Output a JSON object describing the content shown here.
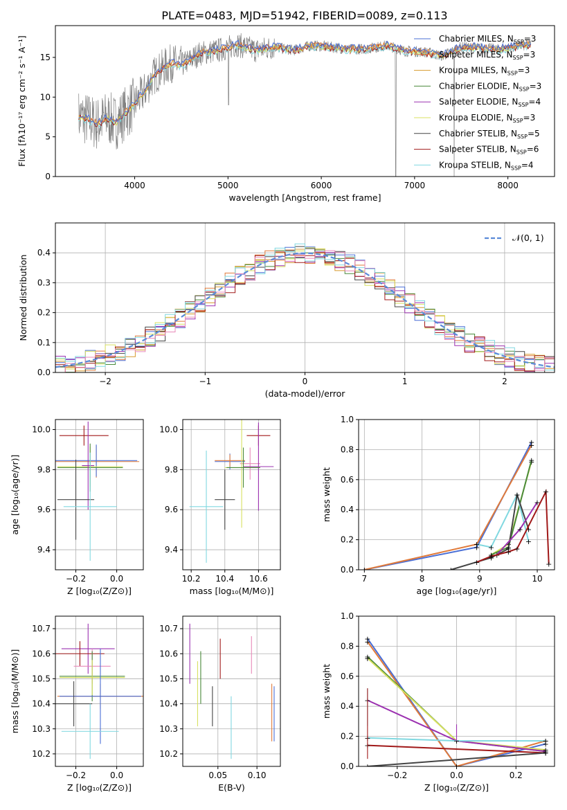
{
  "title": "PLATE=0483, MJD=51942, FIBERID=0089, z=0.113",
  "colors": {
    "chabrier_miles": "#4a6fd6",
    "salpeter_miles": "#e07a3a",
    "kroupa_miles": "#d79a2b",
    "chabrier_elodie": "#4a8a3a",
    "salpeter_elodie": "#9b30b0",
    "kroupa_elodie": "#d8e060",
    "chabrier_stelib": "#444444",
    "salpeter_stelib": "#a01818",
    "kroupa_stelib": "#80d8e0",
    "spectrum": "#808080",
    "pink": "#e888b8",
    "normal_curve": "#5a8ad8"
  },
  "chart_data": [
    {
      "type": "line",
      "xlabel": "wavelength [Angstrom, rest frame]",
      "ylabel": "Flux [fλ10⁻¹⁷ erg cm⁻² s⁻¹ A⁻¹]",
      "xlim": [
        3150,
        8500
      ],
      "ylim": [
        0,
        19
      ],
      "xticks": [
        "4000",
        "5000",
        "6000",
        "7000",
        "8000"
      ],
      "yticks": [
        "0",
        "5",
        "10",
        "15"
      ],
      "legend_position": "right",
      "legend": [
        {
          "label": "Chabrier MILES, N",
          "sub": "SSP",
          "val": "=3",
          "color": "chabrier_miles"
        },
        {
          "label": "Salpeter MILES, N",
          "sub": "SSP",
          "val": "=3",
          "color": "salpeter_miles"
        },
        {
          "label": "Kroupa MILES, N",
          "sub": "SSP",
          "val": "=3",
          "color": "kroupa_miles"
        },
        {
          "label": "Chabrier ELODIE, N",
          "sub": "SSP",
          "val": "=3",
          "color": "chabrier_elodie"
        },
        {
          "label": "Salpeter ELODIE, N",
          "sub": "SSP",
          "val": "=4",
          "color": "salpeter_elodie"
        },
        {
          "label": "Kroupa ELODIE, N",
          "sub": "SSP",
          "val": "=3",
          "color": "kroupa_elodie"
        },
        {
          "label": "Chabrier STELIB, N",
          "sub": "SSP",
          "val": "=5",
          "color": "chabrier_stelib"
        },
        {
          "label": "Salpeter STELIB, N",
          "sub": "SSP",
          "val": "=6",
          "color": "salpeter_stelib"
        },
        {
          "label": "Kroupa STELIB, N",
          "sub": "SSP",
          "val": "=4",
          "color": "kroupa_stelib"
        }
      ],
      "model_curve": {
        "x": [
          3400,
          3500,
          3600,
          3700,
          3800,
          3900,
          4000,
          4100,
          4200,
          4300,
          4400,
          4500,
          4700,
          4900,
          5100,
          5300,
          5500,
          5700,
          5900,
          6100,
          6300,
          6500,
          6700,
          6900,
          7100,
          7300,
          7500,
          7700,
          7900,
          8100,
          8250
        ],
        "y": [
          7.5,
          7.2,
          6.6,
          7.4,
          6.8,
          8.0,
          9.2,
          10.6,
          12.6,
          13.6,
          14.3,
          14.0,
          15.5,
          15.9,
          16.6,
          15.9,
          16.3,
          15.9,
          16.5,
          16.3,
          16.0,
          16.1,
          16.5,
          15.8,
          15.7,
          15.2,
          16.3,
          16.2,
          16.0,
          16.4,
          16.6
        ]
      }
    },
    {
      "type": "line",
      "xlabel": "(data-model)/error",
      "ylabel": "Normed distribution",
      "xlim": [
        -2.5,
        2.5
      ],
      "ylim": [
        0,
        0.5
      ],
      "xticks": [
        "−2",
        "−1",
        "0",
        "1",
        "2"
      ],
      "yticks": [
        "0.0",
        "0.1",
        "0.2",
        "0.3",
        "0.4"
      ],
      "legend_position": "top-right",
      "legend_label": "𝒩(0, 1)",
      "normal": {
        "mean": 0,
        "sigma": 1
      }
    },
    {
      "type": "scatter",
      "xlabel": "Z [log₁₀(Z/Z⊙)]",
      "ylabel": "age  [log₁₀(age/yr)]",
      "xlim": [
        -0.3,
        0.13
      ],
      "ylim": [
        9.3,
        10.05
      ],
      "xticks": [
        "−0.2",
        "0.0"
      ],
      "yticks": [
        "9.4",
        "9.6",
        "9.8",
        "10.0"
      ]
    },
    {
      "type": "scatter",
      "xlabel": "mass [log₁₀(M/M⊙)]",
      "xlim": [
        10.15,
        10.73
      ],
      "ylim": [
        9.3,
        10.05
      ],
      "xticks": [
        "10.2",
        "10.4",
        "10.6"
      ],
      "yticks": [
        "9.4",
        "9.6",
        "9.8",
        "10.0"
      ]
    },
    {
      "type": "line",
      "xlabel": "age  [log₁₀(age/yr)]",
      "ylabel": "mass weight",
      "xlim": [
        6.9,
        10.3
      ],
      "ylim": [
        0,
        1
      ],
      "xticks": [
        "7",
        "8",
        "9",
        "10"
      ],
      "yticks": [
        "0.0",
        "0.2",
        "0.4",
        "0.6",
        "0.8",
        "1.0"
      ]
    },
    {
      "type": "scatter",
      "xlabel": "Z [log₁₀(Z/Z⊙)]",
      "ylabel": "mass [log₁₀(M/M⊙)]",
      "xlim": [
        -0.3,
        0.13
      ],
      "ylim": [
        10.15,
        10.75
      ],
      "xticks": [
        "−0.2",
        "0.0"
      ],
      "yticks": [
        "10.2",
        "10.3",
        "10.4",
        "10.5",
        "10.6",
        "10.7"
      ]
    },
    {
      "type": "scatter",
      "xlabel": "E(B-V)",
      "xlim": [
        0.005,
        0.13
      ],
      "ylim": [
        10.15,
        10.75
      ],
      "xticks": [
        "0.05",
        "0.10"
      ],
      "yticks": [
        "10.2",
        "10.3",
        "10.4",
        "10.5",
        "10.6",
        "10.7"
      ]
    },
    {
      "type": "line",
      "xlabel": "Z [log₁₀(Z/Z⊙)]",
      "ylabel": "mass weight",
      "xlim": [
        -0.33,
        0.33
      ],
      "ylim": [
        0,
        1
      ],
      "xticks": [
        "−0.2",
        "0.0",
        "0.2"
      ],
      "yticks": [
        "0.0",
        "0.2",
        "0.4",
        "0.6",
        "0.8",
        "1.0"
      ]
    }
  ]
}
